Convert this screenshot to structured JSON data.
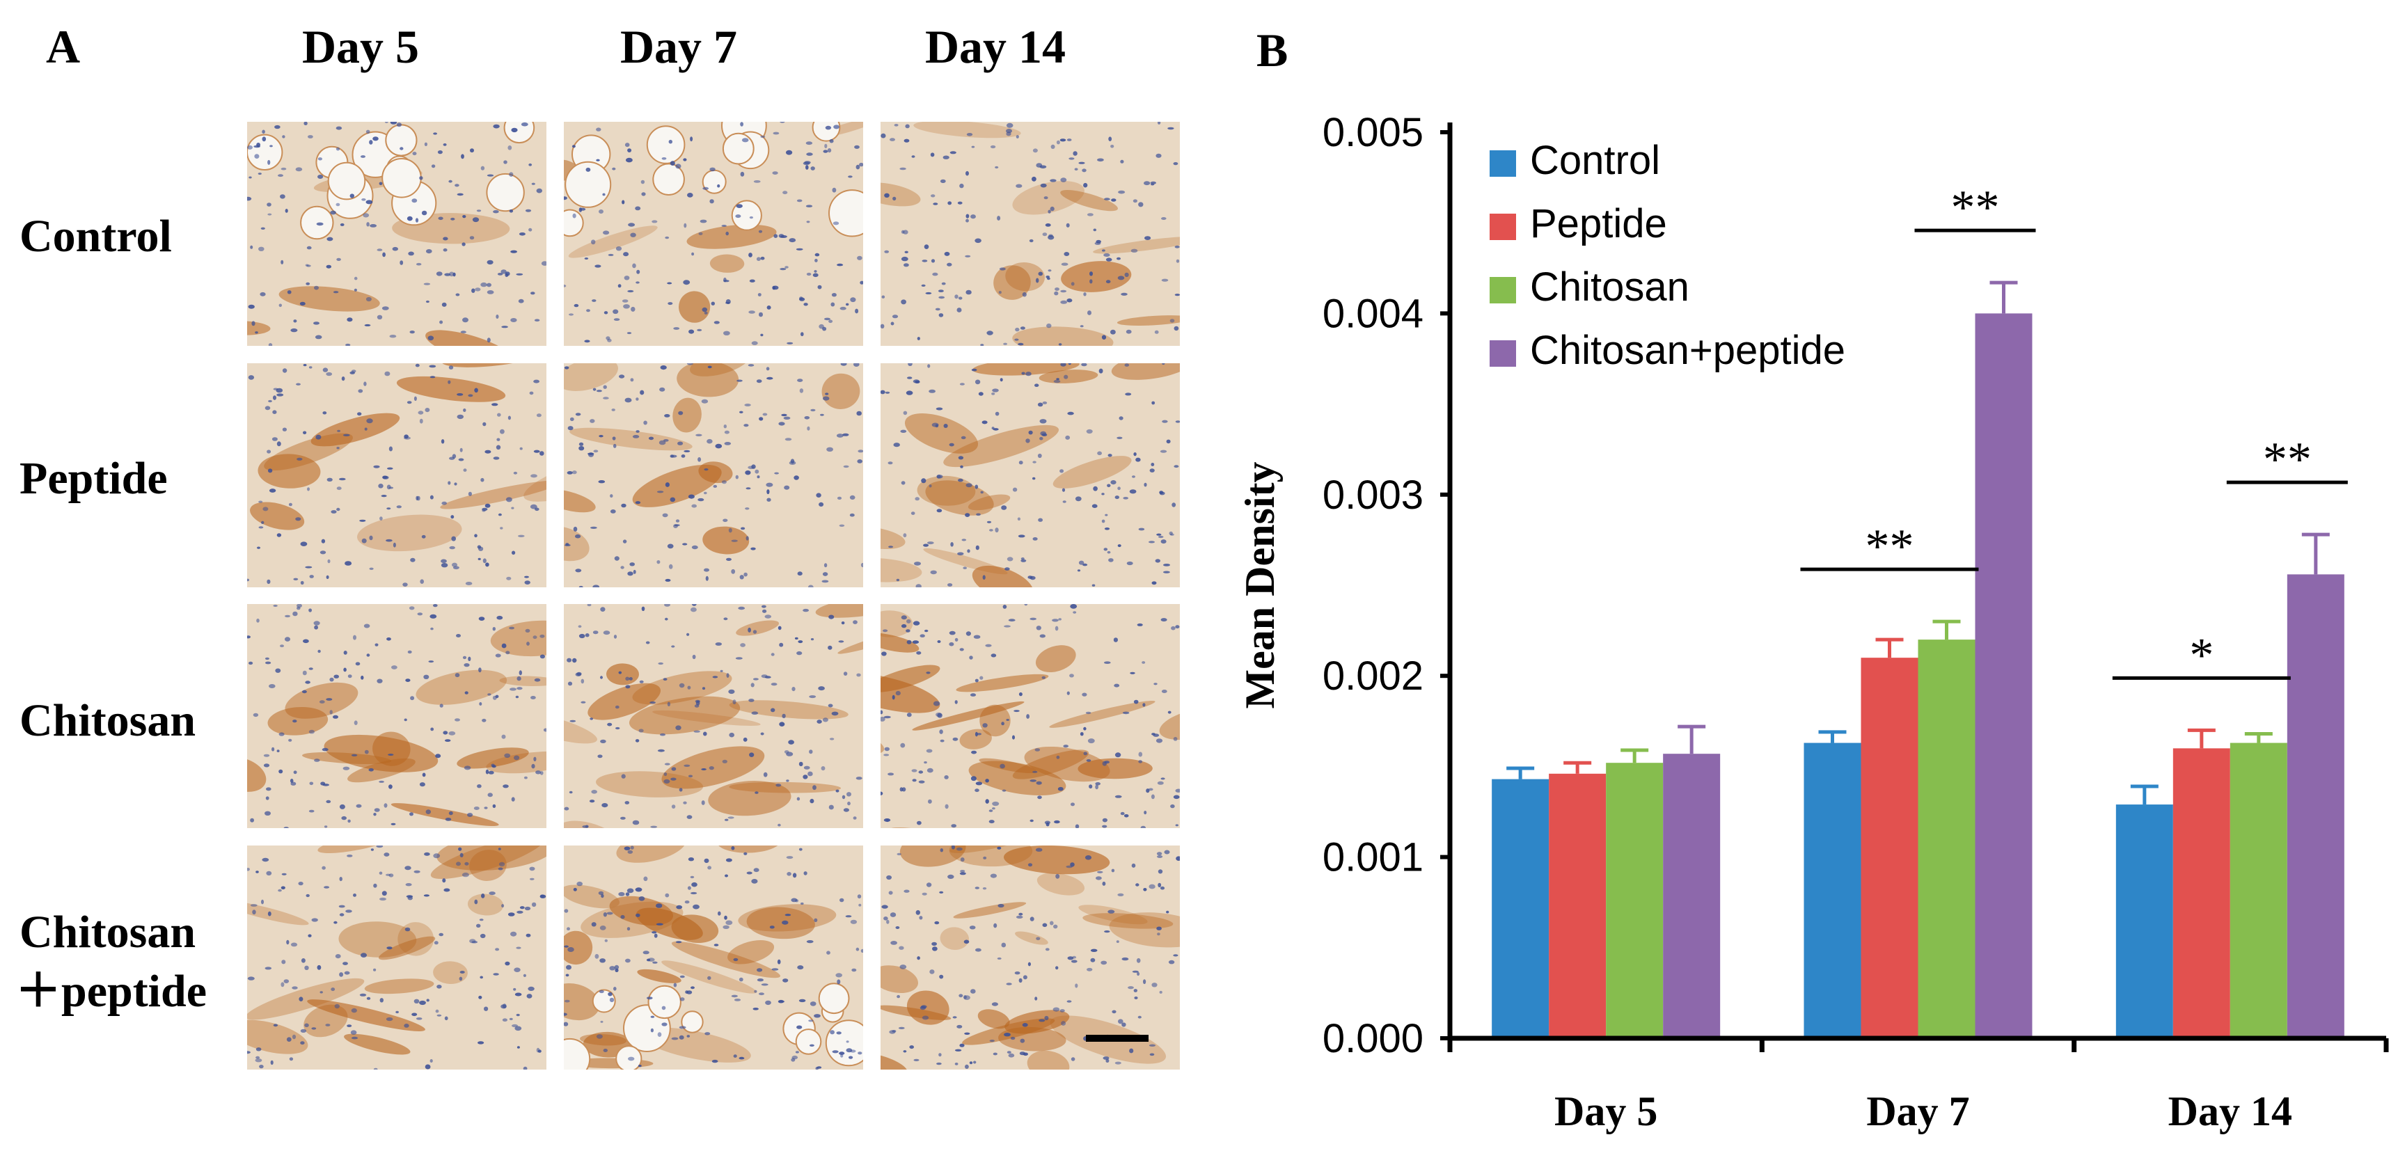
{
  "panel_a": {
    "letter": "A",
    "columns": [
      "Day 5",
      "Day 7",
      "Day 14"
    ],
    "rows": [
      "Control",
      "Peptide",
      "Chitosan",
      "Chitosan",
      "＋peptide"
    ]
  },
  "panel_b": {
    "letter": "B"
  },
  "colors": {
    "Control": "#2e86c8",
    "Peptide": "#e2514f",
    "Chitosan": "#86bd4e",
    "Chitosan+peptide": "#8d68ab",
    "tissue_bg": "#e9d9c4",
    "nuclei": "#3b4f96",
    "stain": "#b8661f"
  },
  "chart_data": {
    "type": "bar",
    "categories": [
      "Day 5",
      "Day 7",
      "Day 14"
    ],
    "series": [
      {
        "name": "Control",
        "values": [
          0.00143,
          0.00163,
          0.00129
        ],
        "errors": [
          6e-05,
          6e-05,
          0.0001
        ]
      },
      {
        "name": "Peptide",
        "values": [
          0.00146,
          0.0021,
          0.0016
        ],
        "errors": [
          6e-05,
          0.0001,
          0.0001
        ]
      },
      {
        "name": "Chitosan",
        "values": [
          0.00152,
          0.0022,
          0.00163
        ],
        "errors": [
          7e-05,
          0.0001,
          5e-05
        ]
      },
      {
        "name": "Chitosan+peptide",
        "values": [
          0.00157,
          0.004,
          0.00256
        ],
        "errors": [
          0.00015,
          0.00017,
          0.00022
        ]
      }
    ],
    "ylabel": "Mean Density",
    "xlabel": "",
    "ylim": [
      0,
      0.005
    ],
    "yticks": [
      "0.000",
      "0.001",
      "0.002",
      "0.003",
      "0.004",
      "0.005"
    ],
    "legend_position": "top-left",
    "significance": [
      {
        "category": "Day 7",
        "from_series": 0,
        "to_series": 2,
        "label": "**"
      },
      {
        "category": "Day 7",
        "from_series": 2,
        "to_series": 3,
        "label": "**"
      },
      {
        "category": "Day 14",
        "from_series": 0,
        "to_series": 2,
        "label": "*"
      },
      {
        "category": "Day 14",
        "from_series": 2,
        "to_series": 3,
        "label": "**"
      }
    ]
  }
}
